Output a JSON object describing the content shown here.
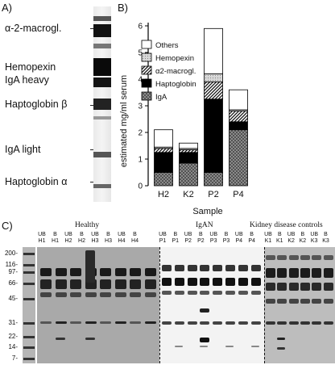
{
  "panels": {
    "a": "A)",
    "b": "B)",
    "c": "C)"
  },
  "gel_a": {
    "bands": [
      {
        "label": "α-2-macrogl.",
        "strength": 0.95
      },
      {
        "label": "Hemopexin",
        "strength": 0.9
      },
      {
        "label": "IgA heavy",
        "strength": 0.95
      },
      {
        "label": "Haptoglobin β",
        "strength": 0.9
      },
      {
        "label": "IgA light",
        "strength": 0.75
      },
      {
        "label": "Haptoglobin α",
        "strength": 0.7
      }
    ]
  },
  "chart_data": {
    "type": "bar",
    "stacked": true,
    "categories": [
      "H2",
      "K2",
      "P2",
      "P4"
    ],
    "series": [
      {
        "name": "IgA",
        "values": [
          0.5,
          0.85,
          0.5,
          2.1
        ],
        "pattern": "crosshatch",
        "color": "#8a8a8a"
      },
      {
        "name": "Haptoglobin",
        "values": [
          0.75,
          0.4,
          2.75,
          0.3
        ],
        "pattern": "solid",
        "color": "#000000"
      },
      {
        "name": "α2-macrogl.",
        "values": [
          0.15,
          0.1,
          0.65,
          0.4
        ],
        "pattern": "diagonal",
        "color": "#555555"
      },
      {
        "name": "Hemopexin",
        "values": [
          0.05,
          0.05,
          0.3,
          0.05
        ],
        "pattern": "dots",
        "color": "#cfcfcf"
      },
      {
        "name": "Others",
        "values": [
          0.65,
          0.2,
          1.7,
          0.75
        ],
        "pattern": "none",
        "color": "#ffffff"
      }
    ],
    "xlabel": "Sample",
    "ylabel": "estimated mg/ml serum",
    "ylim": [
      0,
      6
    ],
    "yticks": [
      "0",
      "1",
      "2",
      "3",
      "4",
      "5",
      "6"
    ],
    "legend_order": [
      "Others",
      "Hemopexin",
      "α2-macrogl.",
      "Haptoglobin",
      "IgA"
    ],
    "legend_position": "top-left"
  },
  "blot_c": {
    "groups": [
      "Healthy",
      "IgAN",
      "Kidney disease controls"
    ],
    "mw_markers": [
      "200-",
      "116-",
      "97-",
      "66-",
      "45-",
      "31-",
      "22-",
      "14-",
      "7-"
    ],
    "healthy_lanes": [
      {
        "t": "UB",
        "s": "H1"
      },
      {
        "t": "B",
        "s": "H1"
      },
      {
        "t": "UB",
        "s": "H2"
      },
      {
        "t": "B",
        "s": "H2"
      },
      {
        "t": "UB",
        "s": "H3"
      },
      {
        "t": "B",
        "s": "H3"
      },
      {
        "t": "UB",
        "s": "H4"
      },
      {
        "t": "B",
        "s": "H4"
      }
    ],
    "igan_lanes": [
      {
        "t": "UB",
        "s": "P1"
      },
      {
        "t": "B",
        "s": "P1"
      },
      {
        "t": "UB",
        "s": "P2"
      },
      {
        "t": "B",
        "s": "P2"
      },
      {
        "t": "UB",
        "s": "P3"
      },
      {
        "t": "B",
        "s": "P3"
      },
      {
        "t": "UB",
        "s": "P4"
      },
      {
        "t": "B",
        "s": "P4"
      }
    ],
    "kidney_lanes": [
      {
        "t": "UB",
        "s": "K1"
      },
      {
        "t": "B",
        "s": "K1"
      },
      {
        "t": "UB",
        "s": "K2"
      },
      {
        "t": "B",
        "s": "K2"
      },
      {
        "t": "UB",
        "s": "K3"
      },
      {
        "t": "B",
        "s": "K3"
      }
    ]
  }
}
